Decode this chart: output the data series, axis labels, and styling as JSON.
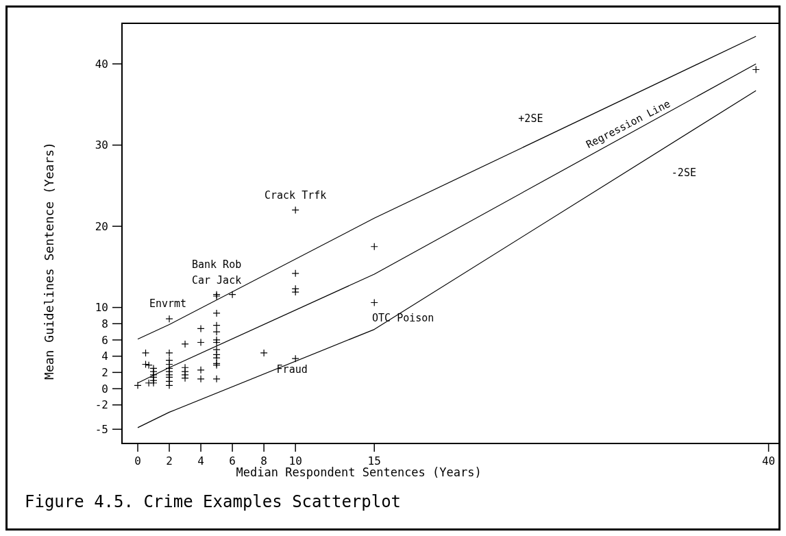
{
  "chart_data": {
    "type": "scatter",
    "title": "Figure 4.5. Crime Examples Scatterplot",
    "xlabel": "Median Respondent Sentences (Years)",
    "ylabel": "Mean Guidelines Sentence (Years)",
    "xlim": [
      -1,
      40.8
    ],
    "ylim": [
      -6.75,
      45
    ],
    "xticks": [
      0,
      2,
      4,
      6,
      8,
      10,
      15,
      40
    ],
    "yticks": [
      -5,
      -2,
      0,
      2,
      4,
      6,
      8,
      10,
      20,
      30,
      40
    ],
    "grid": false,
    "series": [
      {
        "marker": "cross",
        "color": "#000000",
        "x": [
          0,
          0.5,
          0.5,
          0.7,
          0.7,
          1,
          1,
          1,
          1,
          1,
          1,
          2,
          2,
          2,
          2,
          2,
          2,
          2,
          2,
          2,
          2,
          3,
          3,
          3,
          3,
          3,
          4,
          4,
          4,
          4,
          5,
          5,
          5,
          5,
          5,
          5,
          5,
          5,
          5,
          5,
          5,
          5,
          5,
          6,
          8,
          10,
          10,
          10,
          10,
          10,
          15,
          15,
          39.2
        ],
        "values": [
          0.4,
          4.4,
          3.0,
          2.9,
          0.7,
          2.5,
          2.1,
          1.7,
          1.4,
          1.0,
          0.7,
          4.4,
          3.5,
          3.0,
          2.5,
          2.1,
          1.7,
          1.4,
          0.9,
          0.4,
          8.6,
          5.5,
          2.6,
          2.1,
          1.7,
          1.3,
          7.4,
          5.7,
          2.3,
          1.2,
          11.6,
          11.4,
          9.3,
          7.8,
          7.0,
          6.0,
          5.7,
          4.8,
          4.2,
          3.8,
          3.1,
          2.9,
          1.2,
          11.6,
          4.4,
          3.7,
          14.2,
          12.3,
          11.9,
          22.0,
          17.5,
          10.6,
          39.3
        ]
      },
      {
        "type": "line",
        "name": "+2SE",
        "color": "#000000",
        "marker": "none",
        "line_style": "solid",
        "x": [
          0,
          2,
          15,
          39.2
        ],
        "values": [
          6.1,
          7.9,
          21.0,
          43.4
        ]
      },
      {
        "type": "line",
        "name": "Regression Line",
        "color": "#000000",
        "marker": "none",
        "line_style": "solid",
        "x": [
          0,
          2,
          15,
          39.2
        ],
        "values": [
          0.7,
          2.6,
          14.1,
          40.0
        ]
      },
      {
        "type": "line",
        "name": "-2SE",
        "color": "#000000",
        "marker": "none",
        "line_style": "solid",
        "x": [
          0,
          2,
          15,
          39.2
        ],
        "values": [
          -4.8,
          -2.9,
          7.3,
          36.7
        ]
      }
    ],
    "annotations": [
      {
        "text": "Crack Trfk",
        "x": 10,
        "y": 22.0
      },
      {
        "text": "Bank Rob",
        "x": 5,
        "y": 11.6
      },
      {
        "text": "Car Jack",
        "x": 5,
        "y": 11.6
      },
      {
        "text": "Envrmt",
        "x": 2,
        "y": 8.6
      },
      {
        "text": "OTC Poison",
        "x": 15,
        "y": 10.6
      },
      {
        "text": "Fraud",
        "x": 10,
        "y": 3.7
      }
    ]
  }
}
